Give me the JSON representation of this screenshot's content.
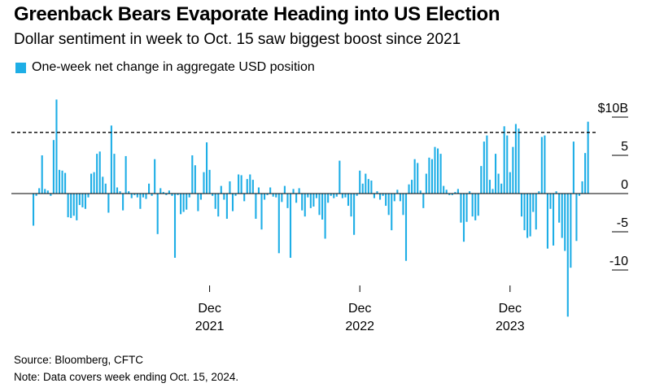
{
  "chart_data": {
    "type": "bar",
    "title": "Greenback Bears Evaporate Heading into US Election",
    "subtitle": "Dollar sentiment in week to Oct. 15 saw biggest boost since 2021",
    "legend": "One-week net change in aggregate USD position",
    "series_color": "#1eaee6",
    "x_ticks": [
      {
        "month": "Dec",
        "year": "2021",
        "index": 61
      },
      {
        "month": "Dec",
        "year": "2022",
        "index": 113
      },
      {
        "month": "Dec",
        "year": "2023",
        "index": 165
      }
    ],
    "y_ticks": [
      {
        "value": 10,
        "label": "$10B"
      },
      {
        "value": 5,
        "label": "5"
      },
      {
        "value": 0,
        "label": "0"
      },
      {
        "value": -5,
        "label": "-5"
      },
      {
        "value": -10,
        "label": "-10"
      }
    ],
    "ylim": [
      -15.5,
      12.5
    ],
    "reference_line": {
      "value": 8.0,
      "style": "dashed"
    },
    "values": [
      -4.2,
      -0.3,
      0.7,
      5.0,
      0.6,
      0.4,
      -0.3,
      7.0,
      12.3,
      3.1,
      3.0,
      2.7,
      -3.1,
      -3.2,
      -2.9,
      -3.5,
      -1.5,
      -1.8,
      -2.0,
      -0.5,
      2.6,
      2.8,
      5.2,
      5.5,
      2.2,
      1.3,
      -2.5,
      8.9,
      5.2,
      0.8,
      0.3,
      -2.2,
      4.9,
      0.3,
      -0.6,
      -0.2,
      -0.5,
      -2.0,
      -0.5,
      -0.7,
      1.3,
      -0.3,
      4.5,
      -5.3,
      0.7,
      0.2,
      -0.2,
      0.4,
      -0.3,
      -8.4,
      -0.2,
      -2.7,
      -2.4,
      -2.1,
      -0.5,
      5.0,
      3.7,
      -2.3,
      -0.8,
      2.8,
      6.7,
      3.1,
      -0.3,
      -2.0,
      -3.0,
      1.0,
      -0.8,
      -3.3,
      1.6,
      -2.3,
      -0.3,
      2.5,
      2.4,
      -1.0,
      1.9,
      2.5,
      1.8,
      -3.3,
      0.8,
      -4.7,
      -0.8,
      -0.2,
      0.8,
      -0.4,
      -0.5,
      -7.8,
      -1.1,
      1.0,
      -1.9,
      -8.4,
      0.6,
      -1.2,
      0.7,
      -2.2,
      -3.0,
      -0.5,
      -1.9,
      -1.7,
      -0.6,
      -2.8,
      -3.4,
      -5.9,
      -1.2,
      -0.3,
      -0.6,
      -0.4,
      4.3,
      -0.6,
      -0.5,
      -1.6,
      -3.0,
      -5.4,
      -0.3,
      3.0,
      1.3,
      2.6,
      1.9,
      1.7,
      -0.6,
      0.3,
      -0.8,
      -0.3,
      -1.6,
      -2.8,
      -4.8,
      -1.0,
      0.5,
      -1.0,
      -2.8,
      -8.8,
      1.2,
      1.8,
      4.5,
      4.0,
      0.4,
      -1.9,
      2.6,
      4.7,
      4.5,
      6.1,
      5.9,
      5.2,
      1.0,
      0.5,
      -0.2,
      -0.2,
      0.2,
      0.6,
      -3.8,
      -6.3,
      -3.7,
      0.3,
      -3.0,
      -3.5,
      -2.9,
      3.6,
      6.8,
      7.6,
      1.8,
      0.6,
      5.2,
      2.6,
      1.3,
      8.8,
      7.6,
      2.8,
      6.1,
      9.1,
      8.5,
      -3.0,
      -4.8,
      -5.8,
      -5.6,
      -2.4,
      -4.7,
      0.3,
      7.4,
      7.6,
      -7.2,
      -2.0,
      -6.8,
      0.3,
      -3.8,
      -5.8,
      -7.5,
      -16.1,
      -9.7,
      6.8,
      -6.2,
      -0.3,
      1.6,
      5.3,
      9.4
    ]
  },
  "footer": {
    "source": "Source: Bloomberg, CFTC",
    "note": "Note: Data covers week ending Oct. 15, 2024."
  }
}
